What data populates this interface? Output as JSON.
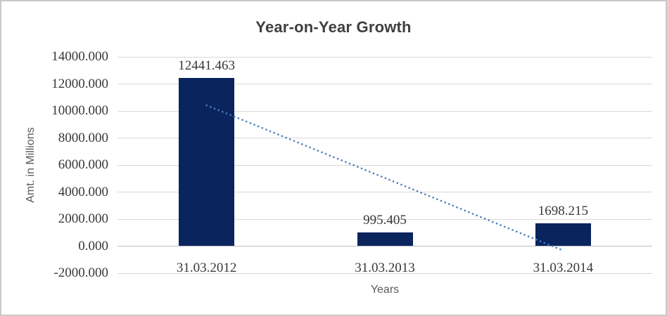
{
  "window": {
    "background": "#FFFFFF",
    "border_color": "#C9C9C9"
  },
  "chart_data": {
    "type": "bar",
    "title": "Year-on-Year Growth",
    "xlabel": "Years",
    "ylabel": "Amt. in Millions",
    "categories": [
      "31.03.2012",
      "31.03.2013",
      "31.03.2014"
    ],
    "values": [
      12441.463,
      995.405,
      1698.215
    ],
    "data_labels": [
      "12441.463",
      "995.405",
      "1698.215"
    ],
    "y_ticks": [
      "14000.000",
      "12000.000",
      "10000.000",
      "8000.000",
      "6000.000",
      "4000.000",
      "2000.000",
      "0.000",
      "-2000.000"
    ],
    "ylim": [
      -2000,
      14000
    ],
    "grid": "horizontal",
    "legend": "none",
    "colors": {
      "bar": "#0A245E",
      "trendline": "#4A7EBB",
      "gridline": "#D9D9D9",
      "axis_line": "#BDBDBD",
      "title_text": "#3F3F3F",
      "tick_text": "#383838",
      "axis_title_text": "#595959"
    },
    "trendline": {
      "style": "dotted",
      "start": {
        "category_index": 0,
        "value": 10416.7
      },
      "end": {
        "category_index": 2,
        "value": -326.6
      }
    }
  }
}
